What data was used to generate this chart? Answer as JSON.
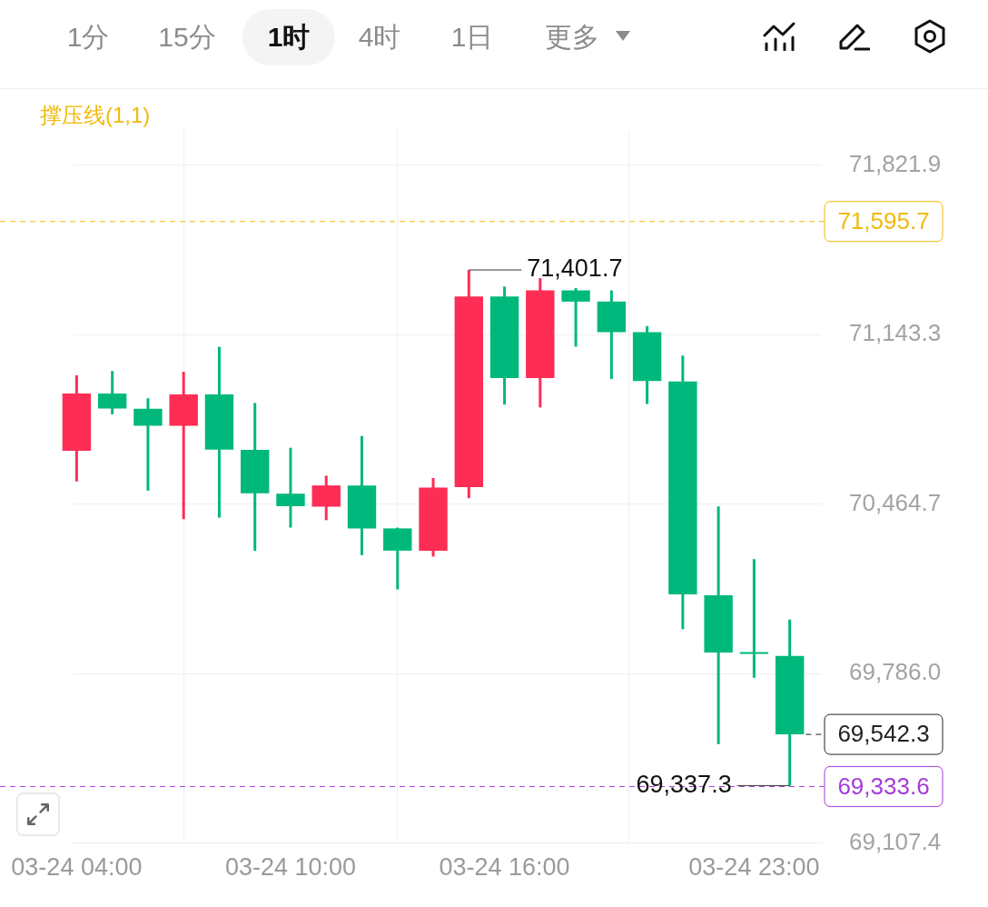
{
  "chart_data": {
    "type": "candlestick",
    "x": [
      "--03-24T04:00",
      "--03-24T05:00",
      "--03-24T06:00",
      "--03-24T07:00",
      "--03-24T08:00",
      "--03-24T09:00",
      "--03-24T10:00",
      "--03-24T11:00",
      "--03-24T12:00",
      "--03-24T13:00",
      "--03-24T14:00",
      "--03-24T15:00",
      "--03-24T16:00",
      "--03-24T17:00",
      "--03-24T18:00",
      "--03-24T19:00",
      "--03-24T20:00",
      "--03-24T21:00",
      "--03-24T22:00",
      "--03-24T23:00",
      "--03-25T00:00"
    ],
    "ohlc": [
      [
        70678,
        70980,
        70555,
        70907
      ],
      [
        70907,
        70997,
        70824,
        70847
      ],
      [
        70846,
        70888,
        70518,
        70778
      ],
      [
        70778,
        70994,
        70404,
        70903
      ],
      [
        70903,
        71094,
        70410,
        70682
      ],
      [
        70681,
        70869,
        70277,
        70508
      ],
      [
        70506,
        70690,
        70370,
        70456
      ],
      [
        70454,
        70578,
        70400,
        70539
      ],
      [
        70539,
        70737,
        70260,
        70367
      ],
      [
        70367,
        70370,
        70123,
        70278
      ],
      [
        70278,
        70569,
        70254,
        70530
      ],
      [
        70532,
        71401.7,
        70488,
        71295
      ],
      [
        71295,
        71335,
        70863,
        70969
      ],
      [
        70969,
        71369,
        70851,
        71320
      ],
      [
        71320,
        71329,
        71095,
        71275
      ],
      [
        71275,
        71320,
        70965,
        71153
      ],
      [
        71153,
        71177,
        70865,
        70957
      ],
      [
        70955,
        71059,
        69964,
        70103
      ],
      [
        70099,
        70455,
        69503,
        69870
      ],
      [
        69868,
        70244,
        69769,
        69865
      ],
      [
        69856,
        70002,
        69337.3,
        69542.3
      ]
    ],
    "colors": [
      "#fe2d55",
      "#00b87b",
      "#00b87b",
      "#fe2d55",
      "#00b87b",
      "#00b87b",
      "#00b87b",
      "#fe2d55",
      "#00b87b",
      "#00b87b",
      "#fe2d55",
      "#fe2d55",
      "#00b87b",
      "#fe2d55",
      "#00b87b",
      "#00b87b",
      "#00b87b",
      "#00b87b",
      "#00b87b",
      "#00b87b",
      "#00b87b"
    ],
    "xlim": [
      "--03-24T03:54",
      "--03-25T00:54"
    ],
    "xticks": [
      {
        "value": "--03-24T04:00",
        "label": "03-24 04:00"
      },
      {
        "value": "--03-24T10:00",
        "label": "03-24 10:00"
      },
      {
        "value": "--03-24T16:00",
        "label": "03-24 16:00"
      },
      {
        "value": "--03-24T23:00",
        "label": "03-24 23:00"
      }
    ],
    "ylim": [
      69107.4,
      71960
    ],
    "yticks": [
      {
        "value": 69107.4,
        "label": "69,107.4"
      },
      {
        "value": 69786.0,
        "label": "69,786.0"
      },
      {
        "value": 70464.7,
        "label": "70,464.7"
      },
      {
        "value": 71143.3,
        "label": "71,143.3"
      },
      {
        "value": 71821.9,
        "label": "71,821.9"
      }
    ],
    "ref_lines": [
      {
        "axis": "y",
        "value": 71595.7,
        "label": "71,595.7",
        "color": "#f0b90b",
        "line_style": "dashed"
      },
      {
        "axis": "y",
        "value": 69542.3,
        "label": "69,542.3",
        "color": "#222222",
        "line_style": "dashed"
      },
      {
        "axis": "y",
        "value": 69333.6,
        "label": "69,333.6",
        "color": "#a53bd8",
        "line_style": "dashed"
      }
    ],
    "grid": true,
    "annotations": [
      "1分",
      "15分",
      "1时",
      "4时",
      "1日",
      "更多",
      "撑压线(1,1)",
      {
        "text": "71,401.7",
        "x": "--03-24T15:00",
        "y": 71401.7
      },
      {
        "text": "69,337.3",
        "x": "--03-25T00:00",
        "y": 69337.3
      }
    ]
  }
}
